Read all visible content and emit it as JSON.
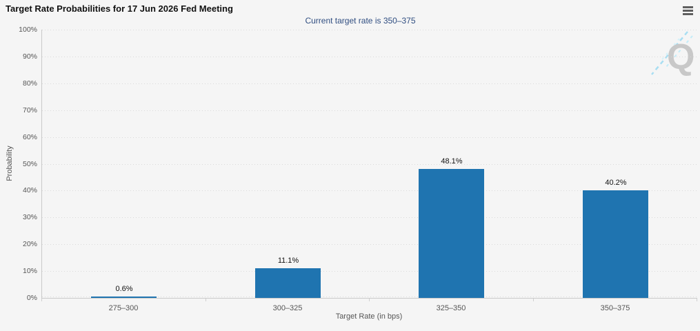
{
  "header": {
    "menu_button": {
      "icon": "hamburger-icon",
      "tooltip": "Chart context menu"
    }
  },
  "chart_data": {
    "type": "bar",
    "title": "Target Rate Probabilities for 17 Jun 2026 Fed Meeting",
    "subtitle": "Current target rate is 350–375",
    "categories": [
      "275–300",
      "300–325",
      "325–350",
      "350–375"
    ],
    "values": [
      0.6,
      11.1,
      48.1,
      40.2
    ],
    "data_labels": [
      "0.6%",
      "11.1%",
      "48.1%",
      "40.2%"
    ],
    "xlabel": "Target Rate (in bps)",
    "ylabel": "Probability",
    "ylim": [
      0,
      100
    ],
    "ytick_step": 10,
    "ytick_labels": [
      "0%",
      "10%",
      "20%",
      "30%",
      "40%",
      "50%",
      "60%",
      "70%",
      "80%",
      "90%",
      "100%"
    ],
    "grid": "dotted-horizontal",
    "legend": "none",
    "bar_color": "#1f74b0"
  },
  "watermark": {
    "letter": "Q"
  },
  "colors": {
    "background": "#f5f5f5",
    "bar": "#1f74b0",
    "title": "#111111",
    "subtitle": "#2f4d80",
    "axis_text": "#555555",
    "grid": "#d9d9d9",
    "axis_line": "#c9c9c9",
    "menu_icon": "#5f5f5f",
    "watermark_q": "#c8c8c8",
    "watermark_dash": "#a8def2"
  }
}
